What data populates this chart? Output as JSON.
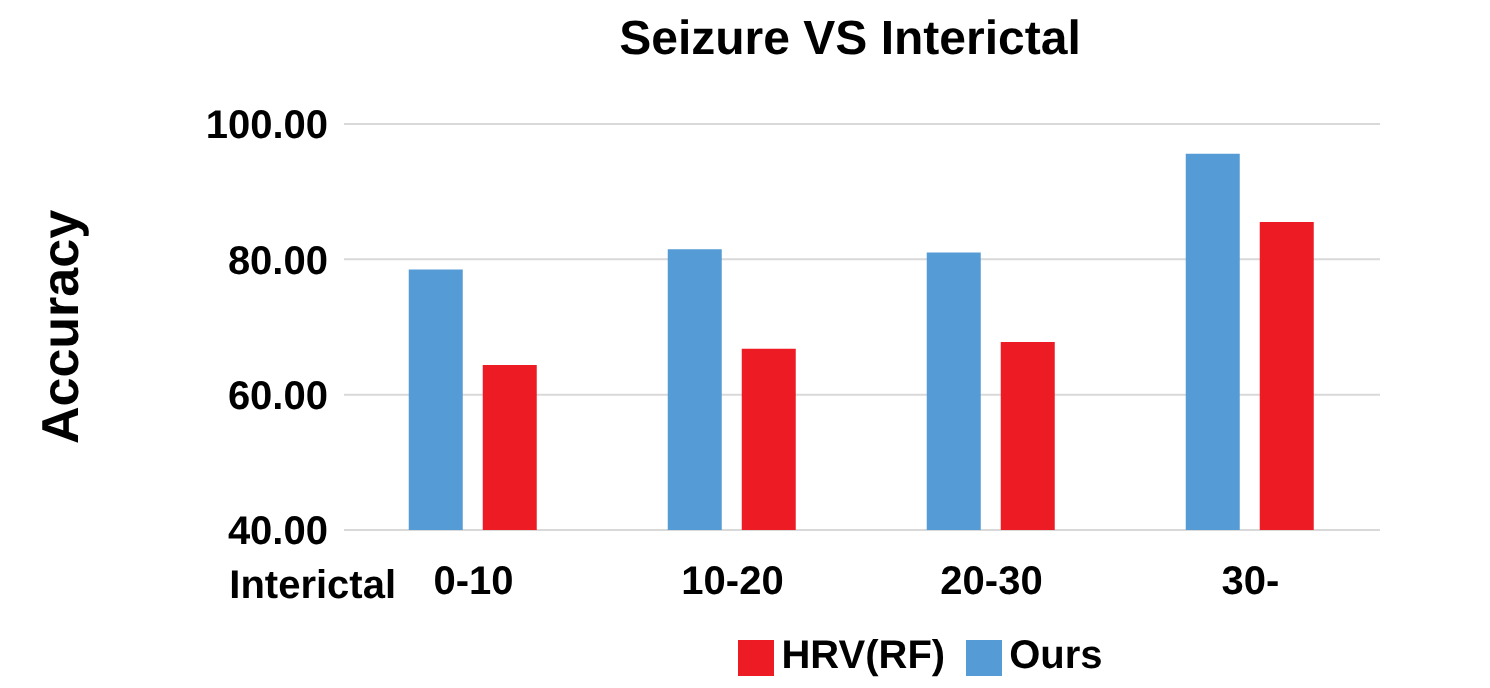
{
  "chart_data": {
    "type": "bar",
    "title": "Seizure VS Interictal",
    "xlabel": "Interictal",
    "ylabel": "Accuracy",
    "categories": [
      "0-10",
      "10-20",
      "20-30",
      "30-"
    ],
    "series": [
      {
        "name": "Ours",
        "color": "#559bd5",
        "values": [
          78.5,
          81.5,
          81.0,
          95.6
        ]
      },
      {
        "name": "HRV(RF)",
        "color": "#ed1c24",
        "values": [
          64.4,
          66.8,
          67.8,
          85.5
        ]
      }
    ],
    "ylim": [
      40,
      100
    ],
    "yticks": [
      {
        "value": 40,
        "label": "40.00"
      },
      {
        "value": 60,
        "label": "60.00"
      },
      {
        "value": 80,
        "label": "80.00"
      },
      {
        "value": 100,
        "label": "100.00"
      }
    ],
    "grid": "y",
    "legend": "bottom"
  }
}
